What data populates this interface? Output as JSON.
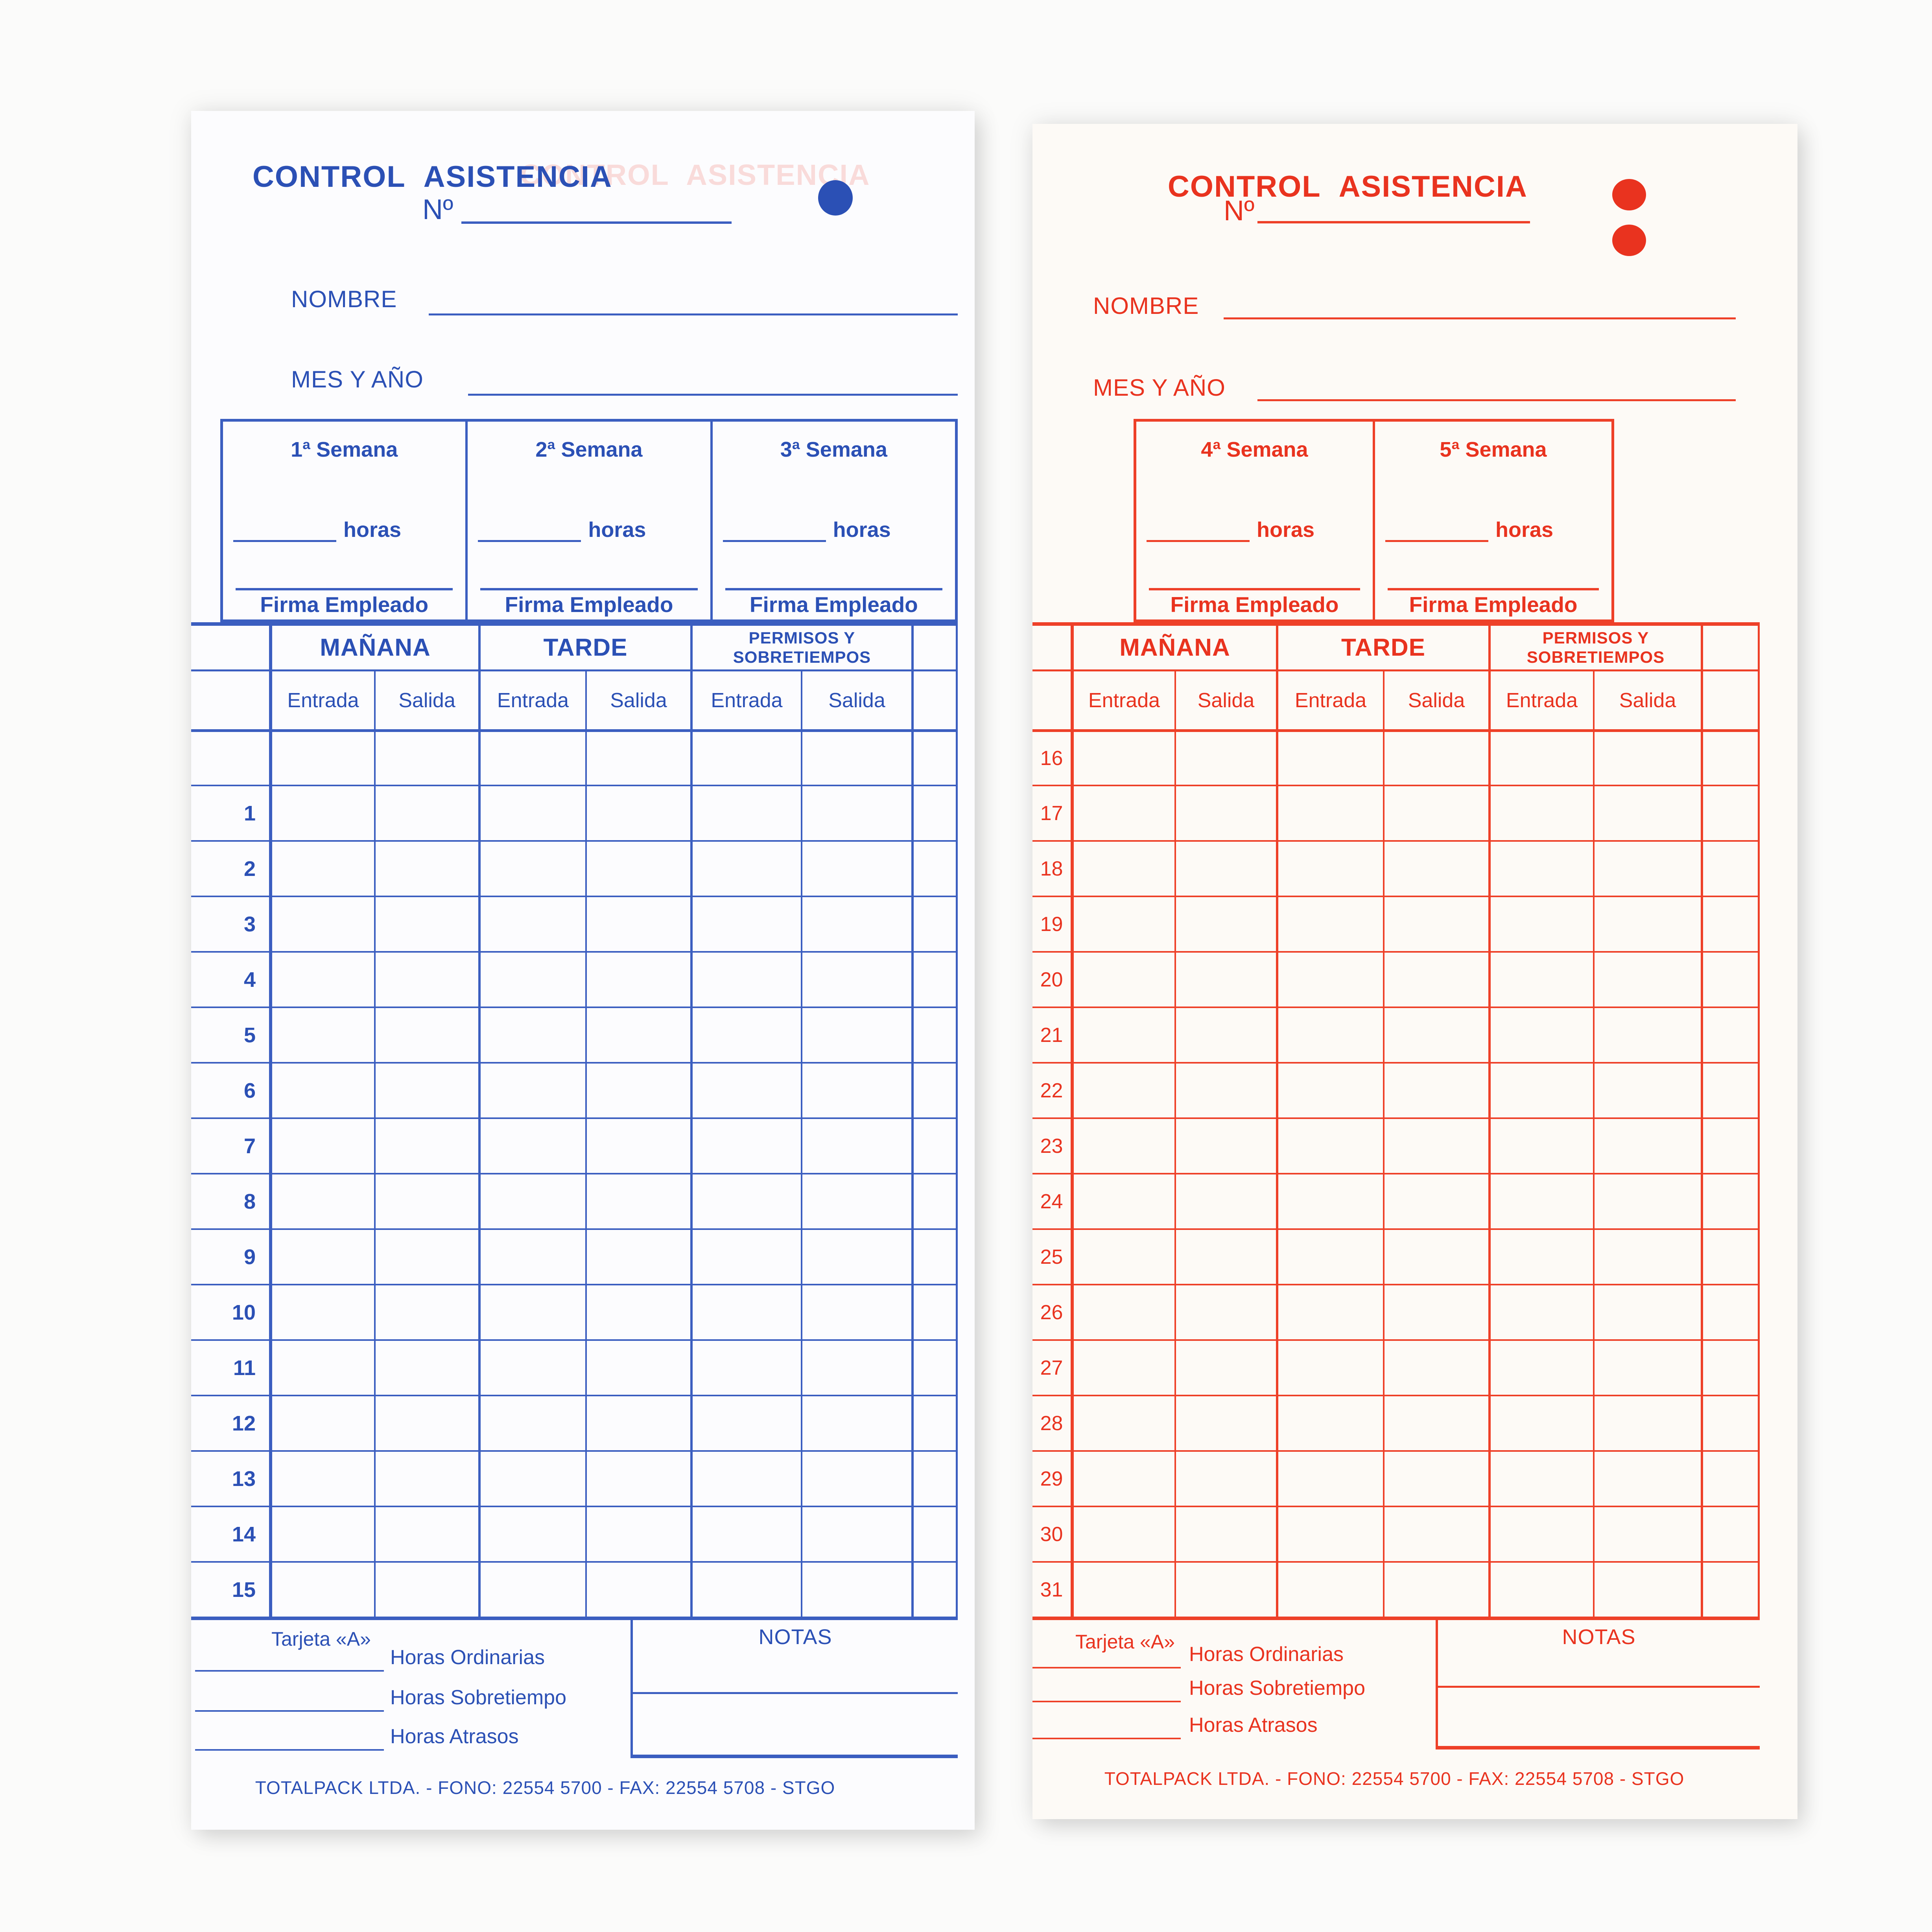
{
  "cards": {
    "front": {
      "side_label": "front-blue",
      "accent_color": "#2b50b5",
      "title": "CONTROL ASISTENCIA",
      "ghost_title": "CONTROL ASISTENCIA",
      "numero_label": "Nº",
      "nombre_label": "NOMBRE",
      "mes_label": "MES Y AÑO",
      "punch_dots": 1,
      "weeks": [
        {
          "name": "1ª Semana"
        },
        {
          "name": "2ª Semana"
        },
        {
          "name": "3ª Semana"
        }
      ],
      "horas_label": "horas",
      "firma_label": "Firma Empleado",
      "columns": {
        "manana": "MAÑANA",
        "tarde": "TARDE",
        "permisos_line1": "PERMISOS Y",
        "permisos_line2": "SOBRETIEMPOS",
        "entrada": "Entrada",
        "salida": "Salida"
      },
      "days": [
        "",
        "1",
        "2",
        "3",
        "4",
        "5",
        "6",
        "7",
        "8",
        "9",
        "10",
        "11",
        "12",
        "13",
        "14",
        "15"
      ],
      "tarjeta_label": "Tarjeta «A»",
      "totals": [
        "Horas Ordinarias",
        "Horas Sobretiempo",
        "Horas Atrasos"
      ],
      "notas_label": "NOTAS",
      "footer": "TOTALPACK LTDA. - FONO: 22554 5700 - FAX: 22554 5708 - STGO"
    },
    "back": {
      "side_label": "back-red",
      "accent_color": "#e9331f",
      "title": "CONTROL ASISTENCIA",
      "numero_label": "Nº",
      "nombre_label": "NOMBRE",
      "mes_label": "MES Y AÑO",
      "punch_dots": 2,
      "weeks": [
        {
          "name": "4ª Semana"
        },
        {
          "name": "5ª Semana"
        }
      ],
      "horas_label": "horas",
      "firma_label": "Firma Empleado",
      "columns": {
        "manana": "MAÑANA",
        "tarde": "TARDE",
        "permisos_line1": "PERMISOS Y",
        "permisos_line2": "SOBRETIEMPOS",
        "entrada": "Entrada",
        "salida": "Salida"
      },
      "days": [
        "16",
        "17",
        "18",
        "19",
        "20",
        "21",
        "22",
        "23",
        "24",
        "25",
        "26",
        "27",
        "28",
        "29",
        "30",
        "31"
      ],
      "tarjeta_label": "Tarjeta «A»",
      "totals": [
        "Horas Ordinarias",
        "Horas Sobretiempo",
        "Horas Atrasos"
      ],
      "notas_label": "NOTAS",
      "footer": "TOTALPACK LTDA. - FONO: 22554 5700 - FAX: 22554 5708 - STGO"
    }
  }
}
